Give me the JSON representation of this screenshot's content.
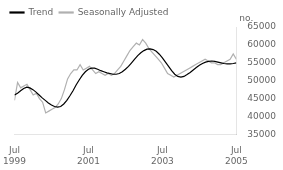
{
  "chart_data": {
    "type": "line",
    "ylabel": "no.",
    "xlim": [
      0,
      72
    ],
    "xticks": [
      {
        "value": 0,
        "label": "Jul\n1999"
      },
      {
        "value": 24,
        "label": "Jul\n2001"
      },
      {
        "value": 48,
        "label": "Jul\n2003"
      },
      {
        "value": 72,
        "label": "Jul\n2005"
      }
    ],
    "ylim": [
      35000,
      65000
    ],
    "yticks": [
      35000,
      40000,
      45000,
      50000,
      55000,
      60000,
      65000
    ],
    "grid": false,
    "legend": "upper left",
    "series": [
      {
        "name": "Trend",
        "color": "#000000",
        "x": [
          0,
          1,
          2,
          3,
          4,
          5,
          6,
          7,
          8,
          9,
          10,
          11,
          12,
          13,
          14,
          15,
          16,
          17,
          18,
          19,
          20,
          21,
          22,
          23,
          24,
          25,
          26,
          27,
          28,
          29,
          30,
          31,
          32,
          33,
          34,
          35,
          36,
          37,
          38,
          39,
          40,
          41,
          42,
          43,
          44,
          45,
          46,
          47,
          48,
          49,
          50,
          51,
          52,
          53,
          54,
          55,
          56,
          57,
          58,
          59,
          60,
          61,
          62,
          63,
          64,
          65,
          66,
          67,
          68,
          69,
          70,
          71,
          72
        ],
        "values": [
          46000,
          46500,
          47200,
          47800,
          48200,
          48000,
          47500,
          46800,
          46000,
          45200,
          44500,
          43800,
          43200,
          42800,
          42600,
          42800,
          43500,
          44500,
          45800,
          47200,
          48800,
          50200,
          51500,
          52500,
          53200,
          53500,
          53500,
          53200,
          52800,
          52500,
          52200,
          52000,
          51800,
          51800,
          52000,
          52500,
          53200,
          54000,
          55000,
          56000,
          57000,
          57800,
          58400,
          58800,
          58900,
          58700,
          58200,
          57400,
          56400,
          55200,
          54000,
          52800,
          51800,
          51200,
          51000,
          51200,
          51700,
          52300,
          53000,
          53700,
          54300,
          54800,
          55200,
          55400,
          55500,
          55400,
          55200,
          55000,
          54800,
          54700,
          54700,
          54800,
          55000
        ]
      },
      {
        "name": "Seasonally Adjusted",
        "color": "#b0b0b0",
        "x": [
          0,
          1.0141,
          2.0282,
          3.0423,
          4.0563,
          5.0704,
          6.0845,
          7.0986,
          8.1127,
          9.1268,
          10.1408,
          11.1549,
          12.169,
          13.1831,
          14.1972,
          15.2113,
          16.2254,
          17.2394,
          18.2535,
          19.2676,
          20.2817,
          21.2958,
          22.3099,
          23.3239,
          24.338,
          25.3521,
          26.3662,
          27.3803,
          28.3944,
          29.4085,
          30.4225,
          31.4366,
          32.4507,
          33.4648,
          34.4789,
          35.493,
          36.507,
          37.5211,
          38.5352,
          39.5493,
          40.5634,
          41.5775,
          42.5915,
          43.6056,
          44.6197,
          45.6338,
          46.6479,
          47.662,
          48.6761,
          49.6901,
          50.7042,
          51.7183,
          52.7324,
          53.7465,
          54.7606,
          55.7746,
          56.7887,
          57.8028,
          58.8169,
          59.831,
          60.8451,
          61.8592,
          62.8732,
          63.8873,
          64.9014,
          65.9155,
          66.9296,
          67.9437,
          68.9577,
          69.9718,
          70.9859,
          72
        ],
        "values": [
          44500,
          49500,
          48000,
          48500,
          49000,
          47500,
          46000,
          46500,
          45000,
          44000,
          41000,
          41500,
          42000,
          42500,
          43500,
          45000,
          47500,
          50500,
          52000,
          53000,
          53000,
          54500,
          53000,
          53500,
          54000,
          53000,
          52000,
          52500,
          52000,
          51500,
          52000,
          51500,
          52000,
          53000,
          54000,
          55500,
          57000,
          58500,
          59500,
          60500,
          60000,
          61500,
          60500,
          59000,
          58000,
          57000,
          56000,
          55000,
          53500,
          52000,
          51500,
          51000,
          51500,
          52000,
          52500,
          53000,
          53500,
          54000,
          54500,
          55000,
          55500,
          56000,
          55500,
          55000,
          55000,
          54500,
          54500,
          55000,
          55500,
          56000,
          57500,
          56000
        ]
      }
    ]
  }
}
